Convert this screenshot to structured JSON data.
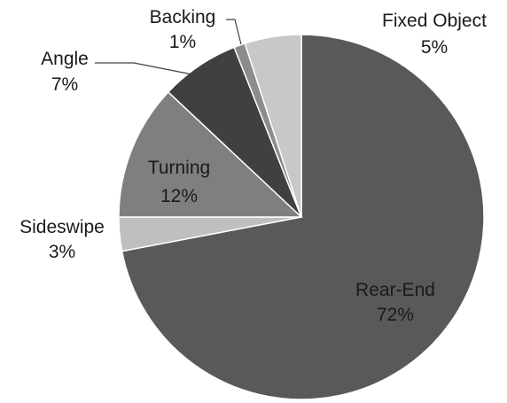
{
  "chart_data": {
    "type": "pie",
    "title": "",
    "start_angle_deg": 0,
    "direction": "clockwise",
    "slices": [
      {
        "label": "Rear-End",
        "value": 72,
        "value_label": "72%",
        "color": "#595959",
        "label_position": "inside"
      },
      {
        "label": "Sideswipe",
        "value": 3,
        "value_label": "3%",
        "color": "#bfbfbf",
        "label_position": "outside"
      },
      {
        "label": "Turning",
        "value": 12,
        "value_label": "12%",
        "color": "#7f7f7f",
        "label_position": "inside"
      },
      {
        "label": "Angle",
        "value": 7,
        "value_label": "7%",
        "color": "#404040",
        "label_position": "outside"
      },
      {
        "label": "Backing",
        "value": 1,
        "value_label": "1%",
        "color": "#8c8c8c",
        "label_position": "outside"
      },
      {
        "label": "Fixed Object",
        "value": 5,
        "value_label": "5%",
        "color": "#c8c8c8",
        "label_position": "outside"
      }
    ],
    "legend": "none"
  }
}
